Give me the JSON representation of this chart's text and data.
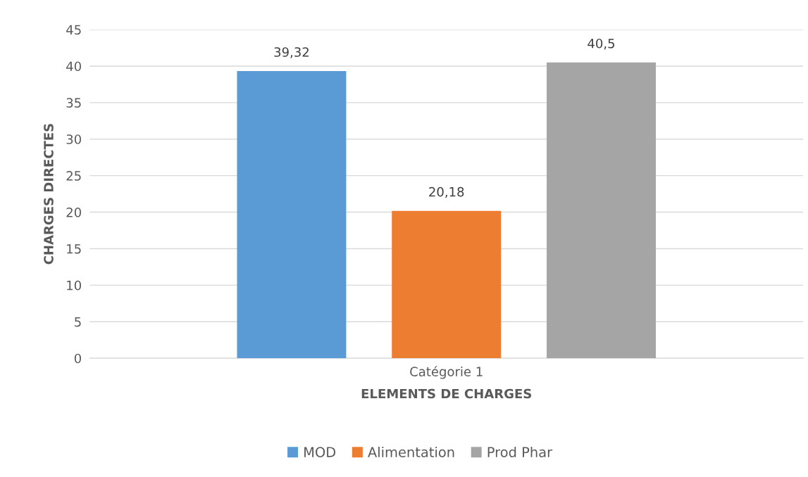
{
  "chart_data": {
    "type": "bar",
    "xlabel": "ELEMENTS DE CHARGES",
    "ylabel": "CHARGES DIRECTES",
    "categories": [
      "Catégorie 1"
    ],
    "series": [
      {
        "name": "MOD",
        "color": "#5b9bd5",
        "values": [
          39.32
        ],
        "value_labels": [
          "39,32"
        ]
      },
      {
        "name": "Alimentation",
        "color": "#ed7d31",
        "values": [
          20.18
        ],
        "value_labels": [
          "20,18"
        ]
      },
      {
        "name": "Prod Phar",
        "color": "#a5a5a5",
        "values": [
          40.5
        ],
        "value_labels": [
          "40,5"
        ]
      }
    ],
    "ylim": [
      0,
      45
    ],
    "yticks": [
      0,
      5,
      10,
      15,
      20,
      25,
      30,
      35,
      40,
      45
    ],
    "grid": "y",
    "legend": "bottom"
  }
}
